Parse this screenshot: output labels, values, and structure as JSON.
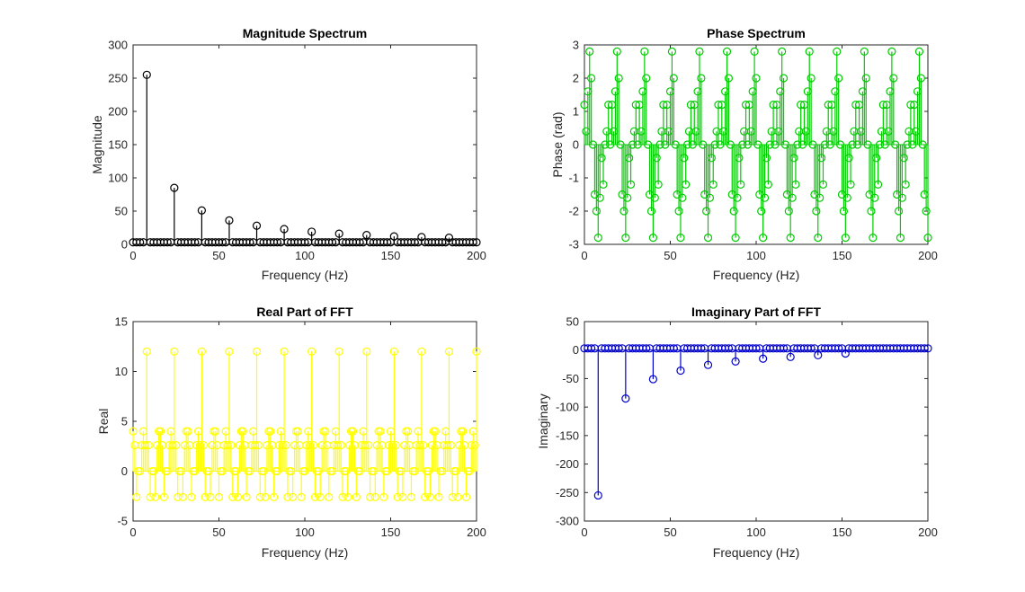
{
  "figure": {
    "background": "#ffffff"
  },
  "chart_data": [
    {
      "type": "stem",
      "title": "Magnitude Spectrum",
      "xlabel": "Frequency (Hz)",
      "ylabel": "Magnitude",
      "xlim": [
        0,
        200
      ],
      "ylim": [
        0,
        300
      ],
      "xticks": [
        "0",
        "50",
        "100",
        "150",
        "200"
      ],
      "yticks": [
        "0",
        "50",
        "100",
        "150",
        "200",
        "250",
        "300"
      ],
      "color": "#000000",
      "baseline": 0,
      "peaks": {
        "x": [
          8,
          24,
          40,
          56,
          72,
          88,
          104,
          120,
          136,
          152,
          168,
          184
        ],
        "y": [
          255,
          85,
          51,
          36,
          28,
          23,
          19,
          16,
          14,
          12,
          11,
          10
        ]
      },
      "floor": {
        "x_start": 0,
        "x_end": 200,
        "step": 2,
        "y": 3
      }
    },
    {
      "type": "stem",
      "title": "Phase Spectrum",
      "xlabel": "Frequency (Hz)",
      "ylabel": "Phase (rad)",
      "xlim": [
        0,
        200
      ],
      "ylim": [
        -3,
        3
      ],
      "xticks": [
        "0",
        "50",
        "100",
        "150",
        "200"
      ],
      "yticks": [
        "-3",
        "-2",
        "-1",
        "0",
        "1",
        "2",
        "3"
      ],
      "color": "#00cc00",
      "baseline": 0,
      "pattern": {
        "period": 16,
        "offset": 0,
        "step": 1,
        "x_start": 0,
        "x_end": 200,
        "cycle_values": [
          1.2,
          0.4,
          1.6,
          2.8,
          2.0,
          0,
          -1.5,
          -2.0,
          -2.8,
          -1.6,
          -0.4,
          -1.2,
          0,
          0.4,
          1.2,
          0
        ]
      }
    },
    {
      "type": "stem",
      "title": "Real Part of FFT",
      "xlabel": "Frequency (Hz)",
      "ylabel": "Real",
      "xlim": [
        0,
        200
      ],
      "ylim": [
        -5,
        15
      ],
      "xticks": [
        "0",
        "50",
        "100",
        "150",
        "200"
      ],
      "yticks": [
        "-5",
        "0",
        "5",
        "10",
        "15"
      ],
      "color": "#ffff00",
      "baseline": 0,
      "pattern": {
        "period": 16,
        "offset": 0,
        "step": 1,
        "x_start": 0,
        "x_end": 200,
        "cycle_values": [
          4.0,
          2.6,
          -2.6,
          0,
          0,
          2.6,
          4.0,
          2.6,
          12.0,
          2.6,
          -2.6,
          0,
          0,
          -2.6,
          2.6,
          4.0
        ]
      }
    },
    {
      "type": "stem",
      "title": "Imaginary Part of FFT",
      "xlabel": "Frequency (Hz)",
      "ylabel": "Imaginary",
      "xlim": [
        0,
        200
      ],
      "ylim": [
        -300,
        50
      ],
      "xticks": [
        "0",
        "50",
        "100",
        "150",
        "200"
      ],
      "yticks": [
        "-300",
        "-250",
        "-200",
        "-150",
        "-100",
        "-50",
        "0",
        "50"
      ],
      "color": "#0000cc",
      "baseline": 0,
      "peaks": {
        "x": [
          8,
          24,
          40,
          56,
          72,
          88,
          104,
          120,
          136,
          152
        ],
        "y": [
          -255,
          -85,
          -51,
          -36,
          -26,
          -20,
          -15,
          -12,
          -9,
          -6
        ]
      },
      "floor": {
        "x_start": 0,
        "x_end": 200,
        "step": 2,
        "y": 3
      }
    }
  ]
}
